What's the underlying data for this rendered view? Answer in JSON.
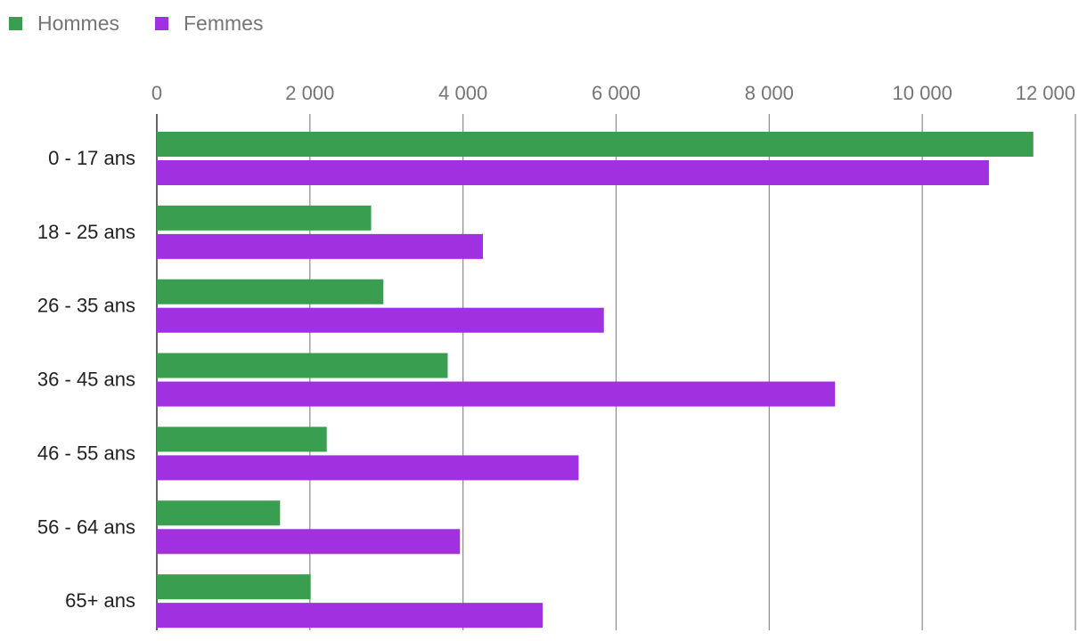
{
  "chart_data": {
    "type": "bar",
    "orientation": "horizontal",
    "title": "",
    "xlabel": "",
    "ylabel": "",
    "xlim": [
      0,
      12000
    ],
    "grid": true,
    "legend_position": "top-left",
    "categories": [
      "0 - 17 ans",
      "18 - 25 ans",
      "26 - 35 ans",
      "36 - 45 ans",
      "46 - 55 ans",
      "56 - 64 ans",
      "65+ ans"
    ],
    "tick_values": [
      0,
      2000,
      4000,
      6000,
      8000,
      10000,
      12000
    ],
    "tick_labels": [
      "0",
      "2 000",
      "4 000",
      "6 000",
      "8 000",
      "10 000",
      "12 000"
    ],
    "series": [
      {
        "name": "Hommes",
        "color": "#3a9e50",
        "values": [
          11450,
          2800,
          2960,
          3800,
          2220,
          1610,
          2010
        ]
      },
      {
        "name": "Femmes",
        "color": "#a030e0",
        "values": [
          10870,
          4260,
          5840,
          8860,
          5510,
          3960,
          5040
        ]
      }
    ]
  }
}
